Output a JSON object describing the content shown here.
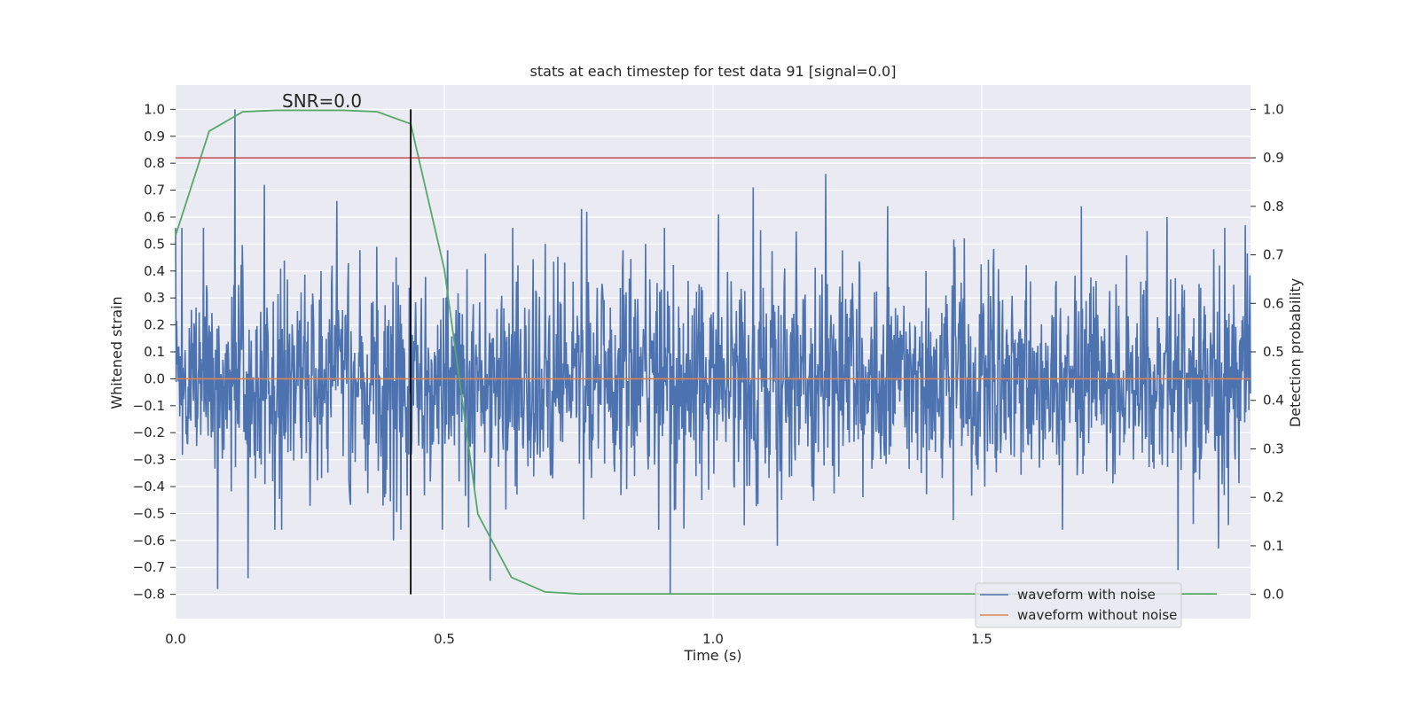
{
  "chart_data": {
    "type": "line",
    "title": "stats at each timestep for test data 91 [signal=0.0]",
    "xlabel": "Time (s)",
    "ylabel": "Whitened strain",
    "y2label": "Detection probability",
    "annotation": "SNR=0.0",
    "xlim": [
      0.0,
      2.0
    ],
    "ylim": [
      -0.89,
      1.09
    ],
    "y2lim": [
      -0.05,
      1.05
    ],
    "xticks": [
      0.0,
      0.5,
      1.0,
      1.5
    ],
    "xtick_labels": [
      "0.0",
      "0.5",
      "1.0",
      "1.5"
    ],
    "yticks": [
      -0.8,
      -0.7,
      -0.6,
      -0.5,
      -0.4,
      -0.3,
      -0.2,
      -0.1,
      0.0,
      0.1,
      0.2,
      0.3,
      0.4,
      0.5,
      0.6,
      0.7,
      0.8,
      0.9,
      1.0
    ],
    "ytick_labels": [
      "−0.8",
      "−0.7",
      "−0.6",
      "−0.5",
      "−0.4",
      "−0.3",
      "−0.2",
      "−0.1",
      "0.0",
      "0.1",
      "0.2",
      "0.3",
      "0.4",
      "0.5",
      "0.6",
      "0.7",
      "0.8",
      "0.9",
      "1.0"
    ],
    "y2ticks": [
      0.0,
      0.1,
      0.2,
      0.3,
      0.4,
      0.5,
      0.6,
      0.7,
      0.8,
      0.9,
      1.0
    ],
    "y2tick_labels": [
      "0.0",
      "0.1",
      "0.2",
      "0.3",
      "0.4",
      "0.5",
      "0.6",
      "0.7",
      "0.8",
      "0.9",
      "1.0"
    ],
    "grid": true,
    "legend_position": "lower-right",
    "series": [
      {
        "name": "waveform with noise",
        "color": "#4c72b0",
        "axis": "left",
        "x_range": [
          0.0,
          2.0
        ],
        "n_samples": 2048,
        "std": 0.2,
        "peaks": [
          [
            0.11,
            1.0
          ],
          [
            0.165,
            0.72
          ],
          [
            0.3,
            0.66
          ],
          [
            0.755,
            0.63
          ],
          [
            0.765,
            0.62
          ],
          [
            1.01,
            0.61
          ],
          [
            1.075,
            0.71
          ],
          [
            1.21,
            0.76
          ],
          [
            1.325,
            0.64
          ],
          [
            1.685,
            0.64
          ],
          [
            1.845,
            0.6
          ],
          [
            1.99,
            0.57
          ]
        ],
        "troughs": [
          [
            0.078,
            -0.78
          ],
          [
            0.135,
            -0.74
          ],
          [
            0.405,
            -0.6
          ],
          [
            0.585,
            -0.75
          ],
          [
            0.92,
            -0.8
          ],
          [
            1.12,
            -0.62
          ],
          [
            1.94,
            -0.63
          ],
          [
            1.865,
            -0.71
          ]
        ]
      },
      {
        "name": "waveform without noise",
        "color": "#dd8452",
        "axis": "left",
        "x": [
          0.0,
          2.0
        ],
        "y": [
          0.0,
          0.0
        ]
      },
      {
        "name": "",
        "color": "#55a868",
        "axis": "right",
        "x": [
          0.0,
          0.0625,
          0.125,
          0.1875,
          0.25,
          0.3125,
          0.375,
          0.4375,
          0.5,
          0.5625,
          0.625,
          0.6875,
          0.75,
          0.8125,
          0.875,
          0.9375,
          1.0,
          1.0625,
          1.125,
          1.1875,
          1.25,
          1.3125,
          1.375,
          1.4375,
          1.5,
          1.5625,
          1.625,
          1.6875,
          1.75,
          1.8125,
          1.875,
          1.9375
        ],
        "y": [
          0.74,
          0.955,
          0.995,
          0.998,
          0.998,
          0.998,
          0.995,
          0.97,
          0.67,
          0.165,
          0.035,
          0.005,
          0.001,
          0.001,
          0.001,
          0.001,
          0.001,
          0.001,
          0.001,
          0.001,
          0.001,
          0.001,
          0.001,
          0.001,
          0.001,
          0.001,
          0.001,
          0.001,
          0.001,
          0.001,
          0.001,
          0.001
        ]
      }
    ],
    "hlines": [
      {
        "y": 0.9,
        "axis": "right",
        "color": "#c44e52"
      }
    ],
    "vlines": [
      {
        "x": 0.4375,
        "ymin": -0.8,
        "ymax": 1.0,
        "axis": "left",
        "color": "#000000"
      }
    ]
  }
}
